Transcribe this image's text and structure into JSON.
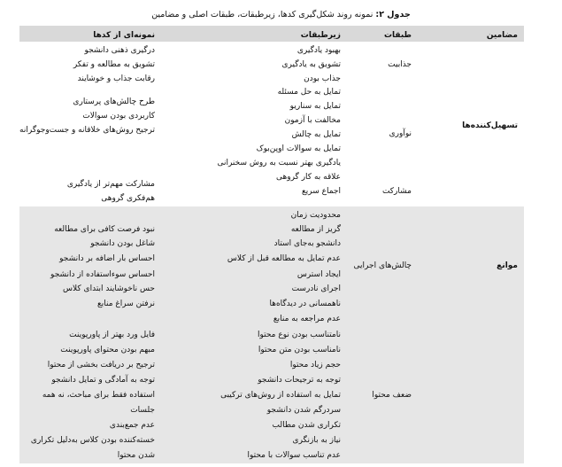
{
  "caption": {
    "label": "جدول ۲:",
    "text": "نمونه روند شکل‌گیری کدها، زیرطبقات، طبقات اصلی و مضامین"
  },
  "headers": {
    "themes": "مضامین",
    "categories": "طبقات",
    "subcategories": "زیرطبقات",
    "codes": "نمونه‌ای از کدها"
  },
  "themes": [
    {
      "name": "تسهیل‌کننده‌ها",
      "categories": [
        {
          "name": "جذابیت",
          "subcategories": [
            "بهبود یادگیری",
            "تشویق به یادگیری",
            "جذاب بودن"
          ],
          "codes": [
            "درگیری ذهنی دانشجو",
            "تشویق به مطالعه و تفکر",
            "رقابت جذاب و خوشایند"
          ]
        },
        {
          "name": "نوآوری",
          "subcategories": [
            "تمایل به حل مسئله",
            "تمایل به سناریو",
            "مخالفت با آزمون",
            "تمایل به چالش",
            "تمایل به سوالات اوپن‌بوک",
            "یادگیری بهتر نسبت به روش سخنرانی"
          ],
          "codes": [
            "طرح چالش‌های پرستاری",
            "کاربردی بودن سوالات",
            "ترجیح روش‌های خلاقانه و جست‌وجوگرانه"
          ]
        },
        {
          "name": "مشارکت",
          "subcategories": [
            "علاقه به کار گروهی",
            "اجماع سریع"
          ],
          "codes": [
            "مشارکت مهم‌تر از یادگیری",
            "هم‌فکری گروهی"
          ]
        }
      ]
    },
    {
      "name": "موانع",
      "categories": [
        {
          "name": "چالش‌های اجرایی",
          "subcategories": [
            "محدودیت زمان",
            "گریز از مطالعه",
            "دانشجو به‌جای استاد",
            "عدم تمایل به مطالعه قبل از کلاس",
            "ایجاد استرس",
            "اجرای نادرست",
            "ناهمسانی در دیدگاه‌ها",
            "عدم مراجعه به منابع"
          ],
          "codes": [
            "نبود فرصت کافی برای مطالعه",
            "شاغل بودن دانشجو",
            "احساس بار اضافه بر دانشجو",
            "احساس سوءاستفاده از دانشجو",
            "حس ناخوشایند ابتدای کلاس",
            "نرفتن سراغ منابع"
          ]
        },
        {
          "name": "ضعف محتوا",
          "subcategories": [
            "نامتناسب بودن نوع محتوا",
            "نامناسب بودن متن محتوا",
            "حجم زیاد محتوا",
            "توجه به ترجیحات دانشجو",
            "تمایل به استفاده از روش‌های ترکیبی",
            "سردرگم شدن دانشجو",
            "تکراری شدن مطالب",
            "نیاز به بازنگری",
            "عدم تناسب سوالات با محتوا"
          ],
          "codes": [
            "فایل ورد بهتر از پاورپوینت",
            "مبهم بودن محتوای پاورپوینت",
            "ترجیح بر دریافت بخشی از محتوا",
            "توجه به آمادگی و تمایل دانشجو",
            "استفاده فقط برای مباحث، نه همه",
            "جلسات",
            "عدم جمع‌بندی",
            "خسته‌کننده بودن کلاس به‌دلیل تکراری",
            "شدن محتوا"
          ]
        }
      ]
    }
  ]
}
